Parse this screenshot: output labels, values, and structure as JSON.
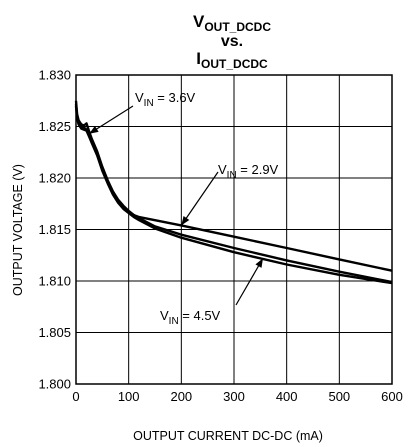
{
  "chart_data": {
    "type": "line",
    "title": {
      "line1_main": "V",
      "line1_sub": "OUT_DCDC",
      "line2": "vs.",
      "line3_main": "I",
      "line3_sub": "OUT_DCDC"
    },
    "xlabel": "OUTPUT CURRENT DC-DC  (mA)",
    "ylabel": "OUTPUT VOLTAGE (V)",
    "xlim": [
      0,
      600
    ],
    "ylim": [
      1.8,
      1.83
    ],
    "xticks": [
      "0",
      "100",
      "200",
      "300",
      "400",
      "500",
      "600"
    ],
    "yticks": [
      "1.800",
      "1.805",
      "1.810",
      "1.815",
      "1.820",
      "1.825",
      "1.830"
    ],
    "grid": true,
    "series": [
      {
        "name": "VIN = 3.6V",
        "x": [
          0,
          2,
          5,
          10,
          15,
          20,
          25,
          30,
          40,
          50,
          60,
          70,
          80,
          90,
          100,
          110,
          120,
          150,
          200,
          300,
          400,
          500,
          600
        ],
        "y": [
          1.8275,
          1.8262,
          1.8256,
          1.8252,
          1.8251,
          1.8253,
          1.8245,
          1.8238,
          1.8226,
          1.8211,
          1.8198,
          1.8187,
          1.8179,
          1.8173,
          1.8168,
          1.8164,
          1.8161,
          1.8153,
          1.8145,
          1.8132,
          1.812,
          1.8109,
          1.8099
        ]
      },
      {
        "name": "VIN = 2.9V",
        "x": [
          0,
          2,
          5,
          10,
          15,
          20,
          25,
          30,
          40,
          50,
          60,
          70,
          80,
          90,
          100,
          110,
          120,
          150,
          200,
          300,
          400,
          500,
          600
        ],
        "y": [
          1.8272,
          1.826,
          1.8254,
          1.825,
          1.8249,
          1.8247,
          1.8241,
          1.8235,
          1.8223,
          1.8209,
          1.8196,
          1.8185,
          1.8177,
          1.8171,
          1.8167,
          1.8164,
          1.8162,
          1.8159,
          1.8154,
          1.8143,
          1.8132,
          1.8121,
          1.811
        ]
      },
      {
        "name": "VIN = 4.5V",
        "x": [
          0,
          2,
          5,
          10,
          15,
          20,
          25,
          30,
          40,
          50,
          60,
          70,
          80,
          90,
          100,
          110,
          120,
          150,
          200,
          300,
          400,
          500,
          600
        ],
        "y": [
          1.827,
          1.8258,
          1.8252,
          1.8248,
          1.8247,
          1.8246,
          1.824,
          1.8234,
          1.8222,
          1.8207,
          1.8195,
          1.8184,
          1.8176,
          1.817,
          1.8166,
          1.8162,
          1.8159,
          1.8151,
          1.8142,
          1.8128,
          1.8116,
          1.8106,
          1.8098
        ]
      }
    ],
    "annotations": [
      {
        "main": "V",
        "sub": "IN",
        "rest": " = 3.6V",
        "point_x": 25,
        "point_y": 1.8243
      },
      {
        "main": "V",
        "sub": "IN",
        "rest": " = 2.9V",
        "point_x": 200,
        "point_y": 1.8154
      },
      {
        "main": "V",
        "sub": "IN",
        "rest": " = 4.5V",
        "point_x": 355,
        "point_y": 1.8122
      }
    ]
  }
}
